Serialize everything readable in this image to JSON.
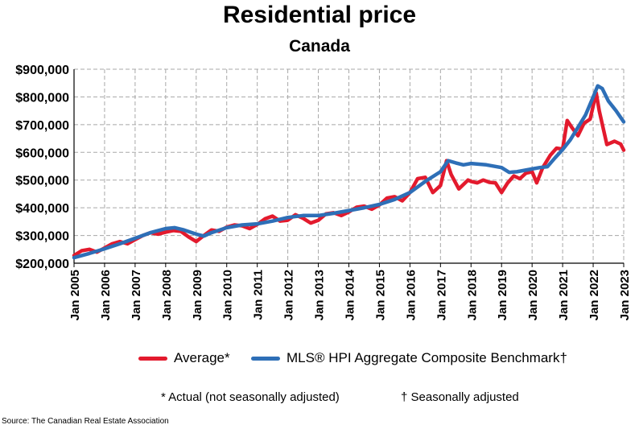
{
  "header": {
    "title": "Residential price",
    "subtitle": "Canada"
  },
  "colors": {
    "average": "#e31a2d",
    "benchmark": "#2e6fb7",
    "grid": "#a8a8a8"
  },
  "legend": {
    "average_label": "Average*",
    "benchmark_label": "MLS® HPI Aggregate Composite Benchmark†"
  },
  "notes": {
    "actual": "* Actual (not seasonally adjusted)",
    "seasonal": "† Seasonally adjusted"
  },
  "source": "Source: The Canadian Real Estate Association",
  "chart_data": {
    "type": "line",
    "title": "Residential price",
    "subtitle": "Canada",
    "xlabel": "",
    "ylabel": "",
    "x_ticks": [
      "Jan 2005",
      "Jan 2006",
      "Jan 2007",
      "Jan 2008",
      "Jan 2009",
      "Jan 2010",
      "Jan 2011",
      "Jan 2012",
      "Jan 2013",
      "Jan 2014",
      "Jan 2015",
      "Jan 2016",
      "Jan 2017",
      "Jan 2018",
      "Jan 2019",
      "Jan 2020",
      "Jan 2021",
      "Jan 2022",
      "Jan 2023"
    ],
    "x_range": [
      2005.0,
      2023.0
    ],
    "y_ticks": [
      200000,
      300000,
      400000,
      500000,
      600000,
      700000,
      800000,
      900000
    ],
    "y_tick_labels": [
      "$200,000",
      "$300,000",
      "$400,000",
      "$500,000",
      "$600,000",
      "$700,000",
      "$800,000",
      "$900,000"
    ],
    "ylim": [
      200000,
      900000
    ],
    "grid": true,
    "legend_position": "bottom",
    "series": [
      {
        "name": "Average*",
        "x": [
          2005.0,
          2005.25,
          2005.5,
          2005.75,
          2006.0,
          2006.25,
          2006.5,
          2006.75,
          2007.0,
          2007.25,
          2007.5,
          2007.75,
          2008.0,
          2008.25,
          2008.5,
          2008.75,
          2009.0,
          2009.25,
          2009.5,
          2009.75,
          2010.0,
          2010.25,
          2010.5,
          2010.75,
          2011.0,
          2011.25,
          2011.5,
          2011.75,
          2012.0,
          2012.25,
          2012.5,
          2012.75,
          2013.0,
          2013.25,
          2013.5,
          2013.75,
          2014.0,
          2014.25,
          2014.5,
          2014.75,
          2015.0,
          2015.25,
          2015.5,
          2015.75,
          2016.0,
          2016.25,
          2016.5,
          2016.75,
          2017.0,
          2017.2,
          2017.35,
          2017.6,
          2017.9,
          2018.0,
          2018.2,
          2018.4,
          2018.6,
          2018.8,
          2019.0,
          2019.2,
          2019.4,
          2019.6,
          2019.8,
          2020.0,
          2020.15,
          2020.35,
          2020.6,
          2020.8,
          2021.0,
          2021.15,
          2021.3,
          2021.5,
          2021.7,
          2021.9,
          2022.1,
          2022.2,
          2022.45,
          2022.7,
          2022.9,
          2023.0
        ],
        "values": [
          228000,
          245000,
          250000,
          240000,
          255000,
          270000,
          278000,
          270000,
          285000,
          300000,
          310000,
          305000,
          312000,
          318000,
          315000,
          295000,
          278000,
          300000,
          320000,
          315000,
          330000,
          338000,
          335000,
          325000,
          340000,
          360000,
          370000,
          352000,
          355000,
          375000,
          362000,
          345000,
          355000,
          378000,
          382000,
          372000,
          385000,
          402000,
          406000,
          395000,
          410000,
          435000,
          440000,
          425000,
          455000,
          505000,
          510000,
          455000,
          480000,
          570000,
          520000,
          468000,
          500000,
          495000,
          490000,
          500000,
          492000,
          490000,
          455000,
          490000,
          515000,
          505000,
          525000,
          530000,
          490000,
          545000,
          590000,
          615000,
          612000,
          715000,
          690000,
          660000,
          705000,
          720000,
          815000,
          750000,
          628000,
          640000,
          630000,
          608000
        ]
      },
      {
        "name": "MLS® HPI Aggregate Composite Benchmark†",
        "x": [
          2005.0,
          2005.5,
          2006.0,
          2006.5,
          2007.0,
          2007.5,
          2008.0,
          2008.3,
          2008.6,
          2009.0,
          2009.25,
          2009.5,
          2010.0,
          2010.5,
          2011.0,
          2011.5,
          2012.0,
          2012.5,
          2013.0,
          2013.5,
          2014.0,
          2014.5,
          2015.0,
          2015.5,
          2016.0,
          2016.5,
          2017.0,
          2017.25,
          2017.5,
          2017.75,
          2018.0,
          2018.5,
          2019.0,
          2019.25,
          2019.5,
          2020.0,
          2020.25,
          2020.5,
          2020.75,
          2021.0,
          2021.25,
          2021.5,
          2021.75,
          2022.0,
          2022.15,
          2022.3,
          2022.5,
          2022.75,
          2023.0
        ],
        "values": [
          220000,
          235000,
          252000,
          270000,
          290000,
          310000,
          325000,
          328000,
          320000,
          305000,
          298000,
          310000,
          328000,
          338000,
          342000,
          352000,
          365000,
          372000,
          372000,
          380000,
          390000,
          400000,
          412000,
          430000,
          455000,
          495000,
          530000,
          570000,
          562000,
          555000,
          560000,
          555000,
          545000,
          528000,
          530000,
          540000,
          545000,
          548000,
          580000,
          610000,
          645000,
          690000,
          735000,
          800000,
          840000,
          830000,
          785000,
          750000,
          710000
        ]
      }
    ]
  }
}
